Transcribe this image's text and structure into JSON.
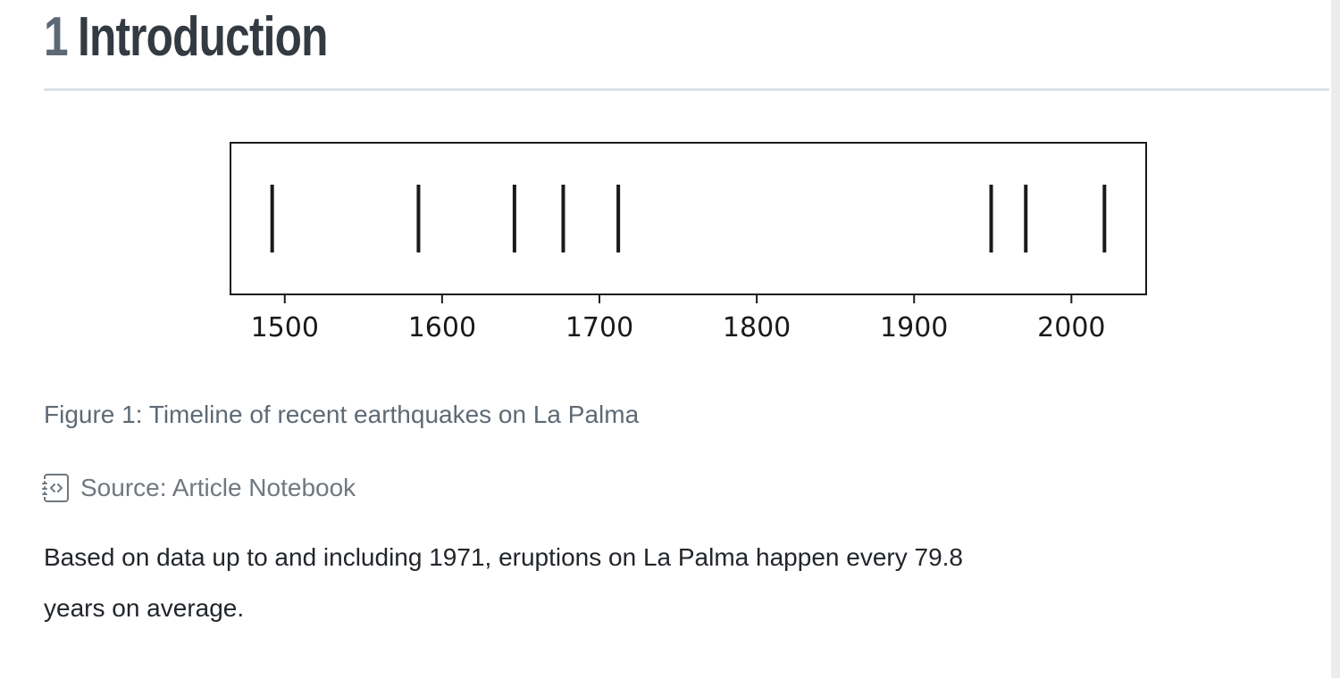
{
  "page": {
    "heading": {
      "number": "1",
      "title": "Introduction"
    },
    "figure": {
      "caption": "Figure 1: Timeline of recent earthquakes on La Palma",
      "source_label": "Source: Article Notebook",
      "source_icon": "journal-code-icon"
    },
    "paragraph_lines": [
      "Based on data up to and including 1971, eruptions on La Palma happen every 79.8",
      "years on average."
    ]
  },
  "colors": {
    "heading_number": "#5c6975",
    "heading_text": "#333a41",
    "caption_text": "#5e6a75",
    "source_text": "#6f7880",
    "body_text": "#22262b",
    "divider": "#dde1e5",
    "scrollbar_track": "#ececec",
    "plot_ink": "#1a1a1a"
  },
  "chart_data": {
    "type": "scatter",
    "subtype": "event-plot",
    "title": "",
    "xlabel": "",
    "ylabel": "",
    "x": [
      1492,
      1585,
      1646,
      1677,
      1712,
      1949,
      1971,
      2021
    ],
    "marker": "vertical-event-line",
    "xticks": [
      1500,
      1600,
      1700,
      1800,
      1900,
      2000
    ],
    "xtick_labels": [
      "1500",
      "1600",
      "1700",
      "1800",
      "1900",
      "2000"
    ],
    "xlim": [
      1465.5,
      2047.5
    ],
    "grid": false,
    "legend": false
  }
}
